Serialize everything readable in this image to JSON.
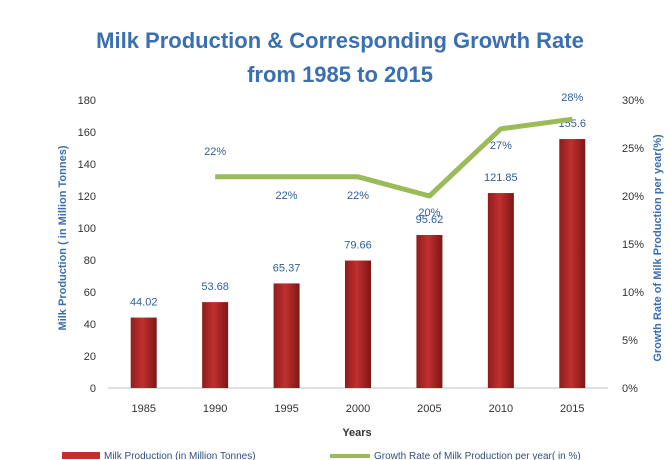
{
  "chart_data": {
    "type": "bar",
    "title_lines": [
      "Milk Production & Corresponding Growth Rate",
      "from 1985 to 2015"
    ],
    "xlabel": "Years",
    "ylabel": "Milk Production ( in Million Tonnes)",
    "y2label": "Growth Rate of Milk Production per year(%)",
    "categories": [
      "1985",
      "1990",
      "1995",
      "2000",
      "2005",
      "2010",
      "2015"
    ],
    "ylim": [
      0,
      180
    ],
    "yticks": [
      0,
      20,
      40,
      60,
      80,
      100,
      120,
      140,
      160,
      180
    ],
    "y2lim": [
      0,
      30
    ],
    "y2ticks": [
      "0%",
      "5%",
      "10%",
      "15%",
      "20%",
      "25%",
      "30%"
    ],
    "grid": false,
    "legend_position": "bottom",
    "series": [
      {
        "name": "Milk Production (in Million Tonnes)",
        "type": "bar",
        "axis": "left",
        "color": "#c0302e",
        "values": [
          44.02,
          53.68,
          65.37,
          79.66,
          95.62,
          121.85,
          155.6
        ],
        "labels": [
          "44.02",
          "53.68",
          "65.37",
          "79.66",
          "95.62",
          "121.85",
          "155.6"
        ]
      },
      {
        "name": "Growth Rate of Milk Production per year( in %)",
        "type": "line",
        "axis": "right",
        "color": "#9bbb59",
        "values": [
          null,
          22,
          22,
          22,
          20,
          27,
          28
        ],
        "labels": [
          "",
          "22%",
          "22%",
          "22%",
          "20%",
          "27%",
          "28%"
        ]
      }
    ]
  }
}
